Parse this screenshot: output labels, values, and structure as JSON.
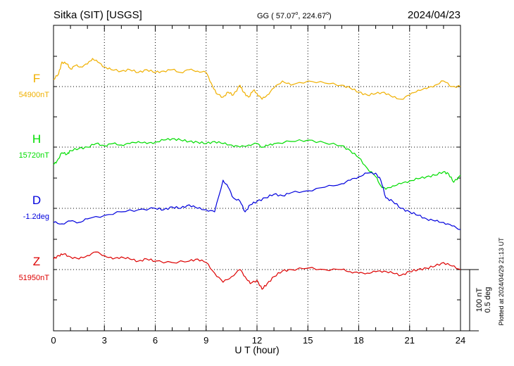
{
  "header": {
    "station": "Sitka (SIT)  [USGS]",
    "coords": "GG ( 57.07",
    "coords_sup1": "o",
    "coords_mid": ", 224.67",
    "coords_sup2": "o",
    "coords_end": ")",
    "date": "2024/04/23"
  },
  "side_note": "Plotted at 2024/04/29 21:13 UT",
  "scale_labels": [
    "100 nT",
    "0.5 deg"
  ],
  "chart_data": {
    "type": "line",
    "title": "Sitka (SIT)  [USGS]",
    "xlabel": "U T (hour)",
    "xlim": [
      0,
      24
    ],
    "xticks": [
      0,
      3,
      6,
      9,
      12,
      15,
      18,
      21,
      24
    ],
    "grid": true,
    "series": [
      {
        "name": "F",
        "baseline_label": "54900nT",
        "color": "#f0b000",
        "x": [
          0,
          0.3,
          0.5,
          0.8,
          1,
          1.3,
          1.6,
          2,
          2.3,
          2.6,
          3,
          3.4,
          4,
          4.5,
          5,
          5.5,
          6,
          6.5,
          7,
          7.5,
          8,
          8.5,
          9,
          9.3,
          9.6,
          10,
          10.3,
          10.6,
          11,
          11.2,
          11.5,
          11.8,
          12,
          12.3,
          12.6,
          13,
          13.5,
          14,
          15,
          16,
          17,
          17.5,
          18,
          18.5,
          19,
          19.5,
          20,
          20.5,
          21,
          21.5,
          22,
          22.5,
          23,
          23.5,
          24
        ],
        "y": [
          10,
          18,
          35,
          32,
          25,
          30,
          28,
          32,
          40,
          35,
          28,
          24,
          22,
          24,
          20,
          24,
          20,
          22,
          24,
          20,
          24,
          22,
          20,
          5,
          -10,
          -15,
          -8,
          -12,
          2,
          -8,
          -15,
          -5,
          -10,
          -18,
          -12,
          -2,
          8,
          2,
          8,
          5,
          2,
          -2,
          -8,
          -12,
          -10,
          -8,
          -15,
          -18,
          -12,
          -5,
          -3,
          2,
          8,
          0,
          0
        ]
      },
      {
        "name": "H",
        "baseline_label": "15720nT",
        "color": "#00dd00",
        "x": [
          0,
          0.2,
          0.5,
          0.8,
          1,
          1.5,
          2,
          2.5,
          3,
          3.5,
          4,
          4.5,
          5,
          5.5,
          6,
          6.5,
          7,
          7.5,
          8,
          8.5,
          9,
          9.5,
          10,
          10.5,
          11,
          11.5,
          12,
          12.3,
          12.6,
          13,
          14,
          15,
          16,
          17,
          17.5,
          18,
          18.5,
          19,
          19.3,
          19.6,
          20,
          20.5,
          21,
          21.5,
          22,
          22.5,
          23,
          23.3,
          23.6,
          24
        ],
        "y": [
          -25,
          -20,
          -8,
          -10,
          -5,
          -2,
          0,
          5,
          2,
          5,
          3,
          5,
          8,
          5,
          7,
          10,
          12,
          10,
          8,
          7,
          5,
          8,
          5,
          3,
          0,
          3,
          5,
          0,
          2,
          5,
          8,
          10,
          6,
          2,
          -5,
          -15,
          -30,
          -42,
          -55,
          -60,
          -55,
          -52,
          -48,
          -45,
          -42,
          -40,
          -35,
          -38,
          -50,
          -40
        ]
      },
      {
        "name": "D",
        "baseline_label": "-1.2deg",
        "color": "#0000dd",
        "x": [
          0,
          0.5,
          1,
          1.5,
          2,
          3,
          4,
          5,
          6,
          6.5,
          7,
          7.5,
          8,
          8.5,
          9,
          9.5,
          10,
          10.3,
          10.6,
          11,
          11.3,
          11.6,
          12,
          12.5,
          13,
          13.5,
          14,
          15,
          16,
          17,
          17.5,
          18,
          18.5,
          19,
          19.3,
          19.6,
          20,
          20.5,
          21,
          21.5,
          22,
          22.5,
          23,
          23.5,
          24
        ],
        "y": [
          -20,
          -22,
          -18,
          -20,
          -15,
          -10,
          -5,
          -2,
          0,
          -2,
          2,
          0,
          5,
          0,
          -2,
          -5,
          40,
          30,
          15,
          10,
          -5,
          5,
          10,
          15,
          20,
          18,
          22,
          25,
          30,
          35,
          40,
          45,
          50,
          50,
          40,
          15,
          10,
          0,
          -5,
          -10,
          -15,
          -18,
          -20,
          -25,
          -30
        ]
      },
      {
        "name": "Z",
        "baseline_label": "51950nT",
        "color": "#dd0000",
        "x": [
          0,
          0.3,
          0.6,
          1,
          1.5,
          2,
          2.5,
          3,
          3.5,
          4,
          4.5,
          5,
          5.5,
          6,
          7,
          8,
          8.5,
          9,
          9.5,
          10,
          10.5,
          11,
          11.3,
          11.6,
          12,
          12.3,
          12.6,
          13,
          13.5,
          14,
          15,
          16,
          17,
          17.5,
          18,
          18.5,
          19,
          19.5,
          20,
          20.5,
          21,
          21.5,
          22,
          22.5,
          23,
          23.5,
          24
        ],
        "y": [
          15,
          20,
          22,
          18,
          15,
          20,
          25,
          20,
          15,
          18,
          15,
          12,
          15,
          12,
          10,
          12,
          15,
          10,
          -5,
          -18,
          -10,
          0,
          -10,
          -20,
          -15,
          -28,
          -20,
          -10,
          -2,
          0,
          2,
          0,
          0,
          -3,
          -5,
          -5,
          -3,
          -2,
          -5,
          -8,
          -3,
          0,
          2,
          5,
          10,
          5,
          0
        ]
      }
    ]
  }
}
